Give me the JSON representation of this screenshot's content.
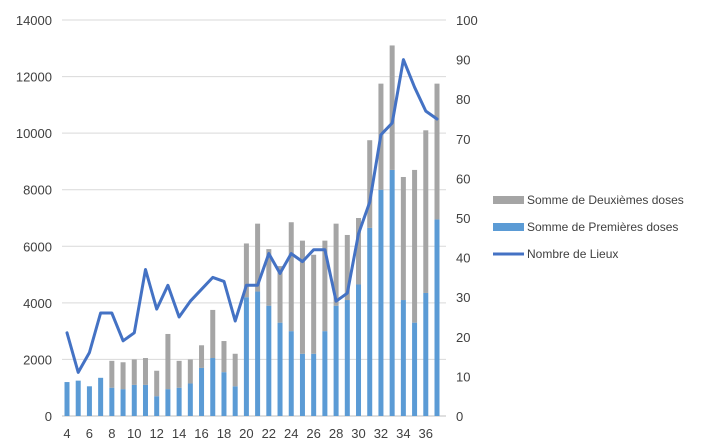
{
  "chart_data": {
    "type": "bar",
    "stacked": true,
    "x": [
      4,
      5,
      6,
      7,
      8,
      9,
      10,
      11,
      12,
      13,
      14,
      15,
      16,
      17,
      18,
      19,
      20,
      21,
      22,
      23,
      24,
      25,
      26,
      27,
      28,
      29,
      30,
      31,
      32,
      33,
      34,
      35,
      36,
      37
    ],
    "x_tick_labels": [
      "4",
      "6",
      "8",
      "10",
      "12",
      "14",
      "16",
      "18",
      "20",
      "22",
      "24",
      "26",
      "28",
      "30",
      "32",
      "34",
      "36"
    ],
    "y_left": {
      "ylim": [
        0,
        14000
      ],
      "ticks": [
        "0",
        "2000",
        "4000",
        "6000",
        "8000",
        "10000",
        "12000",
        "14000"
      ]
    },
    "y_right": {
      "ylim": [
        0,
        100
      ],
      "ticks": [
        "0",
        "10",
        "20",
        "30",
        "40",
        "50",
        "60",
        "70",
        "80",
        "90",
        "100"
      ]
    },
    "series": [
      {
        "name": "Somme de Premières doses",
        "kind": "bar",
        "axis": "left",
        "color": "#5b9bd5",
        "values": [
          1200,
          1250,
          1050,
          1350,
          1000,
          950,
          1100,
          1100,
          700,
          950,
          1000,
          1150,
          1700,
          2050,
          1550,
          1050,
          4200,
          4400,
          3900,
          3300,
          3000,
          2200,
          2200,
          3000,
          3900,
          4100,
          4650,
          6650,
          8000,
          8700,
          4100,
          3300,
          4350,
          6950
        ]
      },
      {
        "name": "Somme de Deuxièmes doses",
        "kind": "bar",
        "axis": "left",
        "color": "#a5a5a5",
        "values": [
          0,
          0,
          0,
          0,
          950,
          950,
          900,
          950,
          900,
          1950,
          950,
          850,
          800,
          1700,
          1100,
          1150,
          1900,
          2400,
          2000,
          2000,
          3850,
          4000,
          3500,
          3200,
          2900,
          2300,
          2350,
          3100,
          3750,
          4400,
          4350,
          5400,
          5750,
          4800
        ]
      },
      {
        "name": "Nombre de Lieux",
        "kind": "line",
        "axis": "right",
        "color": "#4472c4",
        "values": [
          21,
          11,
          16,
          26,
          26,
          19,
          21,
          37,
          27,
          33,
          25,
          29,
          32,
          35,
          34,
          24,
          33,
          33,
          41,
          36,
          41,
          39,
          42,
          42,
          29,
          31,
          46,
          54,
          71,
          74,
          90,
          83,
          77,
          75
        ]
      }
    ],
    "legend": {
      "position": "right",
      "entries": [
        "Somme de Deuxièmes doses",
        "Somme de Premières doses",
        "Nombre de Lieux"
      ]
    },
    "grid": true
  }
}
